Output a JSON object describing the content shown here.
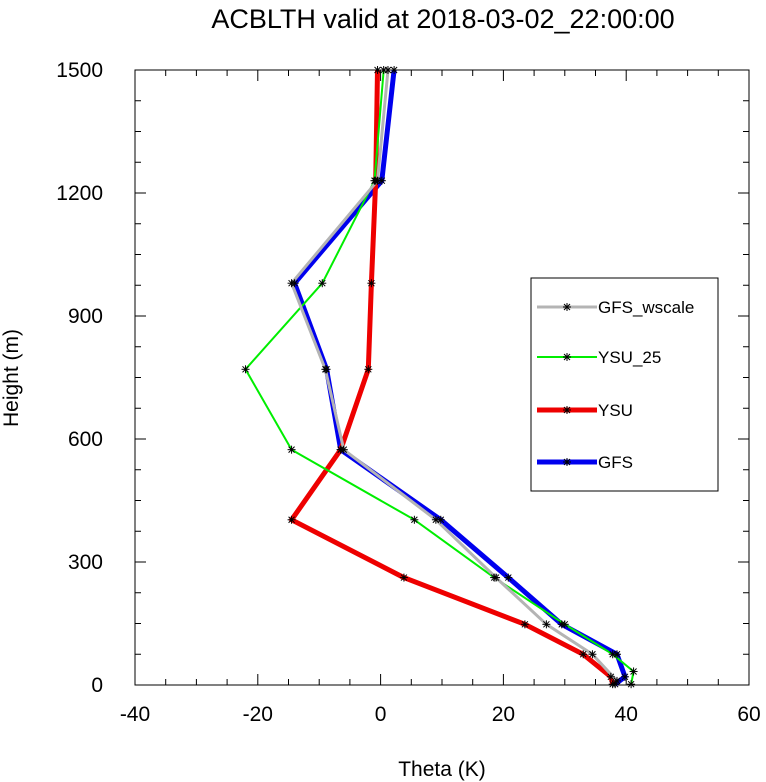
{
  "chart_data": {
    "type": "line",
    "title": "ACBLTH valid at 2018-03-02_22:00:00",
    "xlabel": "Theta (K)",
    "ylabel": "Height (m)",
    "xlim": [
      -40,
      60
    ],
    "ylim": [
      0,
      1500
    ],
    "x_ticks": [
      -40,
      -20,
      0,
      20,
      40,
      60
    ],
    "y_ticks": [
      0,
      300,
      600,
      900,
      1200,
      1500
    ],
    "x_tick_labels": [
      "-40",
      "-20",
      "0",
      "20",
      "40",
      "60"
    ],
    "y_tick_labels": [
      "0",
      "300",
      "600",
      "900",
      "1200",
      "1500"
    ],
    "grid": false,
    "legend_position": "right",
    "series": [
      {
        "name": "GFS",
        "color": "#0000ee",
        "points": [
          [
            38.2,
            2
          ],
          [
            39.8,
            20
          ],
          [
            38.5,
            75
          ],
          [
            29.5,
            148
          ],
          [
            20.8,
            262
          ],
          [
            9.8,
            403
          ],
          [
            -6.5,
            574
          ],
          [
            -8.8,
            770
          ],
          [
            -14.0,
            980
          ],
          [
            0.2,
            1230
          ],
          [
            2.2,
            1500
          ]
        ]
      },
      {
        "name": "YSU",
        "color": "#ee0000",
        "points": [
          [
            37.8,
            2
          ],
          [
            37.5,
            20
          ],
          [
            33.0,
            75
          ],
          [
            23.5,
            148
          ],
          [
            3.8,
            262
          ],
          [
            -14.5,
            403
          ],
          [
            -6.5,
            574
          ],
          [
            -2.0,
            770
          ],
          [
            -1.5,
            980
          ],
          [
            -0.8,
            1230
          ],
          [
            -0.5,
            1500
          ]
        ]
      },
      {
        "name": "YSU_25",
        "color": "#00ee00",
        "points": [
          [
            40.8,
            2
          ],
          [
            41.2,
            33
          ],
          [
            37.8,
            75
          ],
          [
            30.0,
            148
          ],
          [
            18.5,
            262
          ],
          [
            5.5,
            403
          ],
          [
            -14.5,
            574
          ],
          [
            -22.0,
            770
          ],
          [
            -9.5,
            980
          ],
          [
            -1.0,
            1230
          ],
          [
            0.5,
            1500
          ]
        ]
      },
      {
        "name": "GFS_wscale",
        "color": "#b4b4b4",
        "points": [
          [
            38.5,
            10
          ],
          [
            34.5,
            75
          ],
          [
            27.0,
            148
          ],
          [
            18.8,
            262
          ],
          [
            9.0,
            403
          ],
          [
            -6.0,
            574
          ],
          [
            -9.0,
            770
          ],
          [
            -14.5,
            980
          ],
          [
            -0.5,
            1230
          ],
          [
            1.2,
            1500
          ]
        ]
      }
    ],
    "legend_order": [
      "GFS_wscale",
      "YSU_25",
      "YSU",
      "GFS"
    ]
  }
}
